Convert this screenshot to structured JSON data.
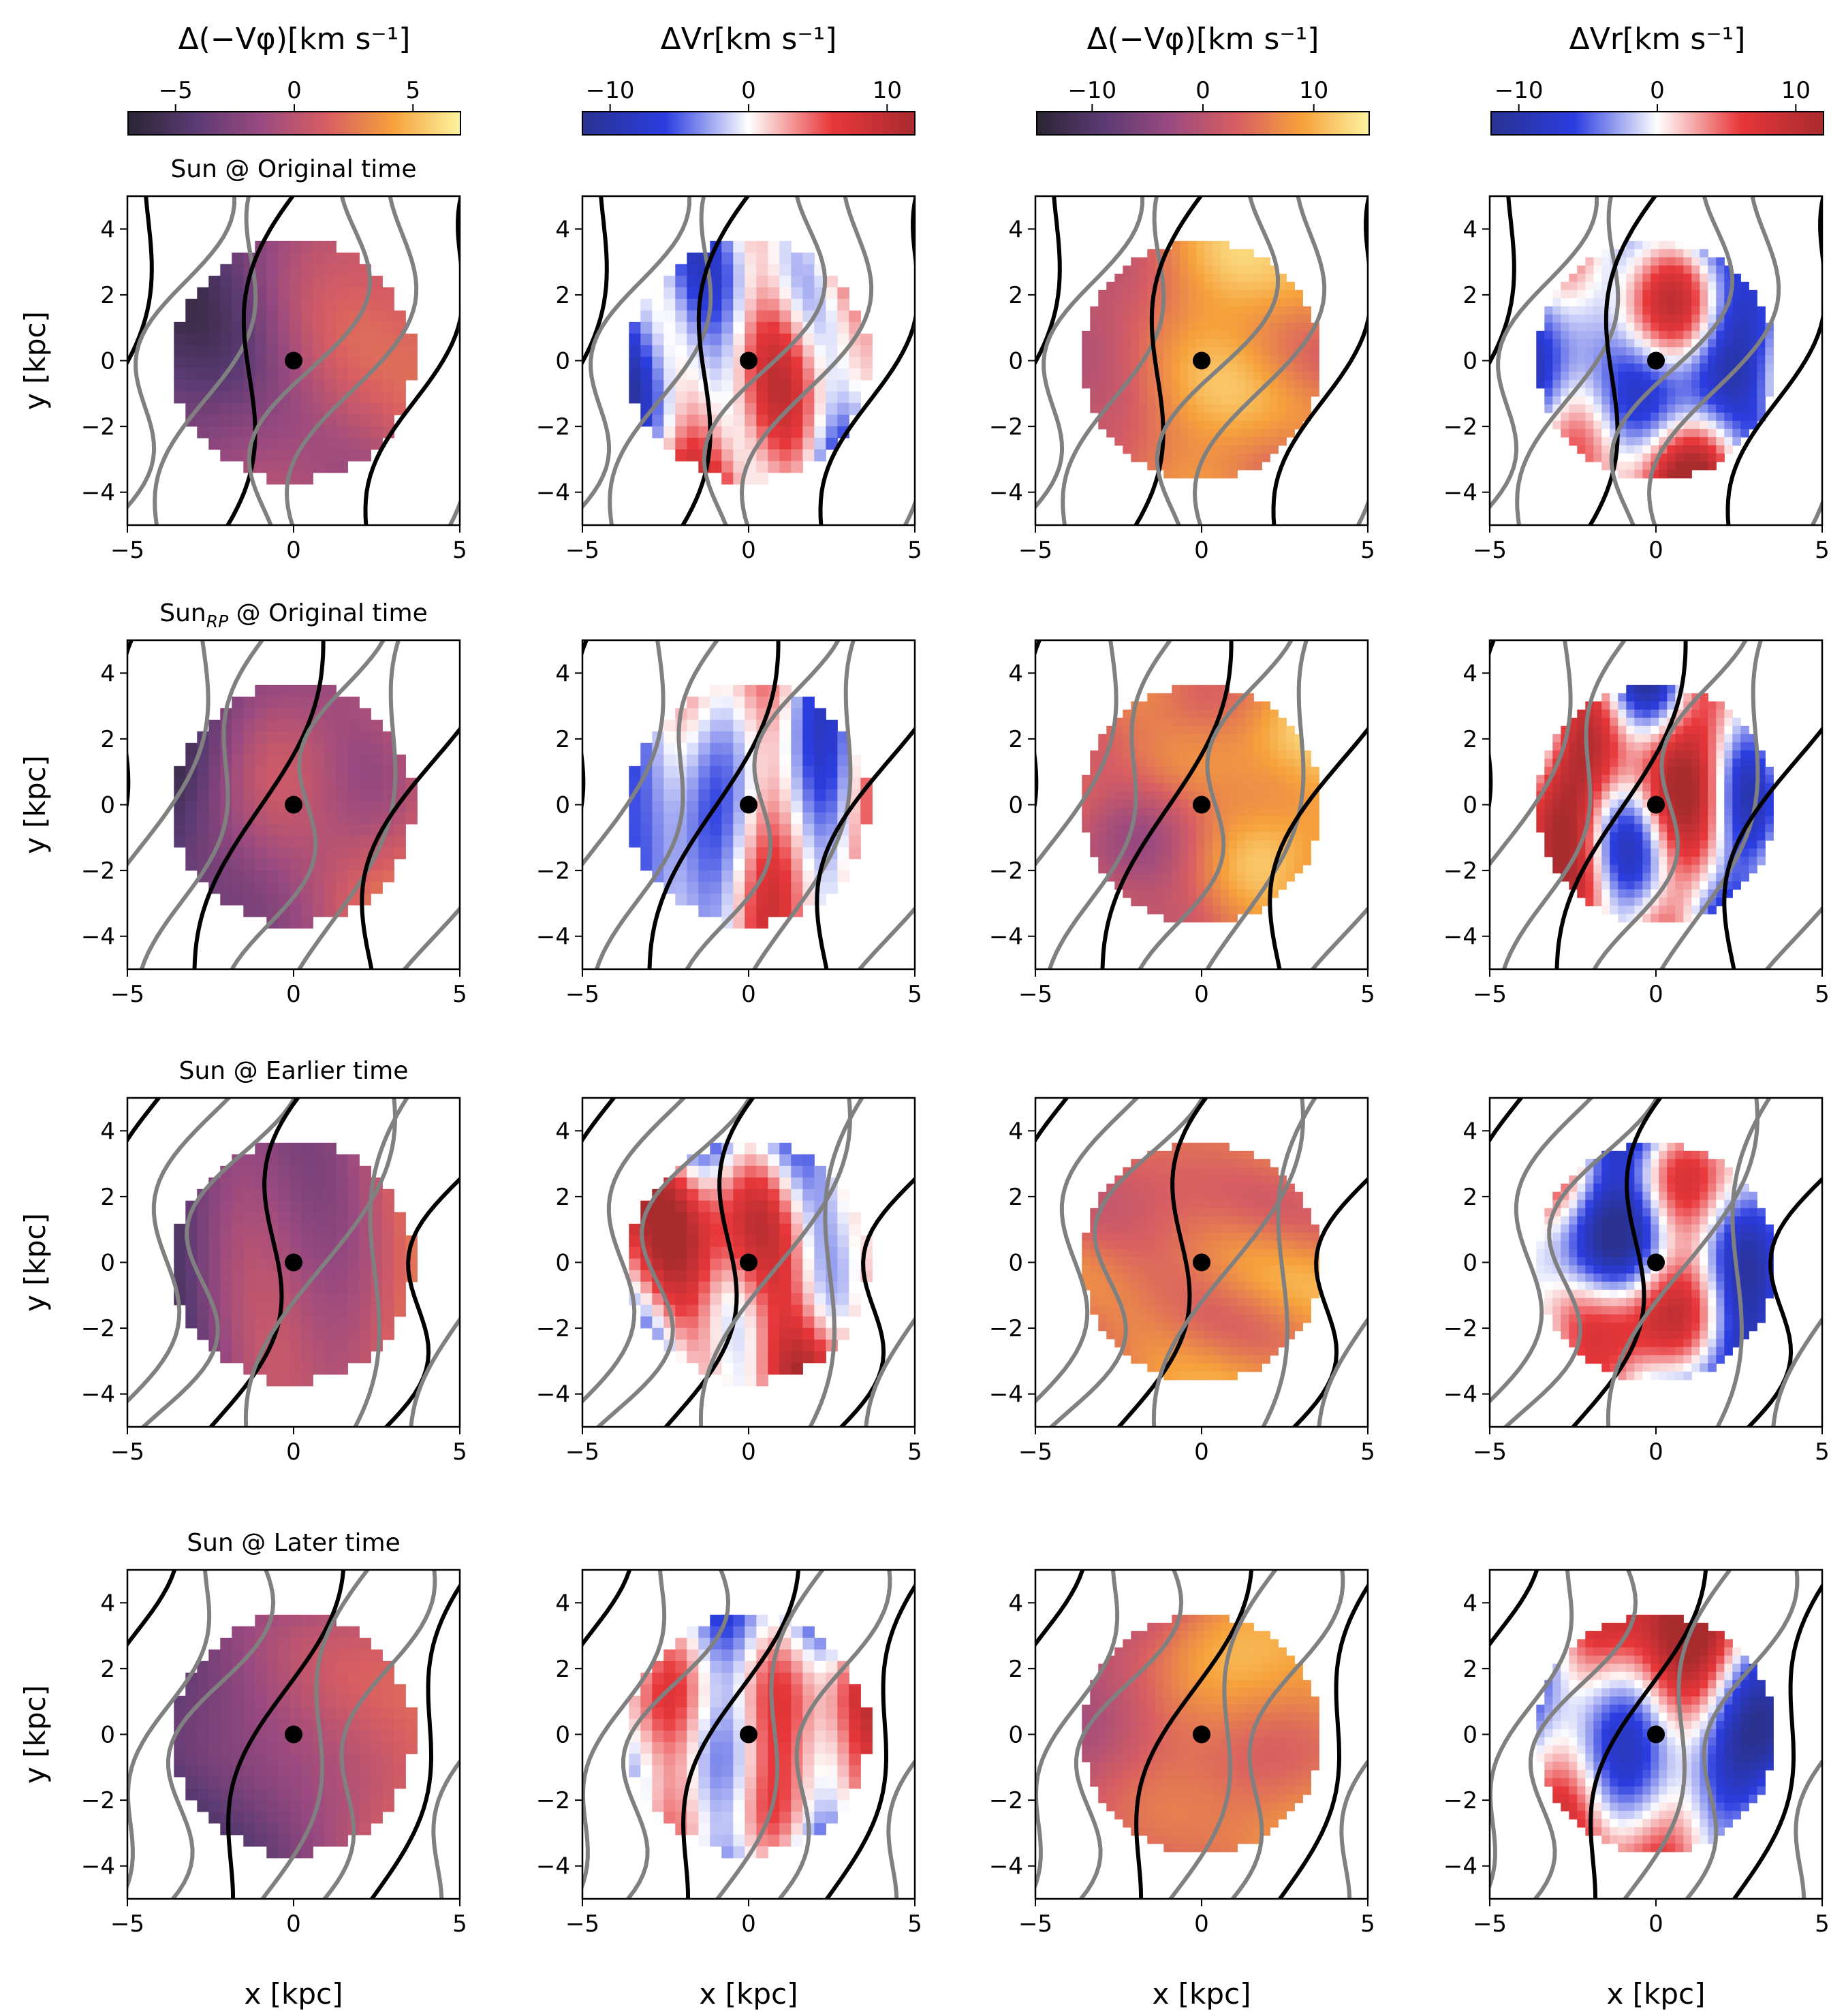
{
  "figure": {
    "xlabel": "x [kpc]",
    "ylabel": "y [kpc]",
    "sun_marker_color": "#000000",
    "arm_colors": [
      "#000000",
      "#808080"
    ]
  },
  "chart_data": {
    "type": "heatmap",
    "colorbars": [
      {
        "label": "Δ(−Vφ)[km s⁻¹]",
        "ticks": [
          -5,
          0,
          5
        ],
        "tick_labels": [
          "−5",
          "0",
          "5"
        ],
        "range": [
          -7,
          7
        ],
        "colormap": "inferno-like",
        "colors": [
          "#2b2535",
          "#5a3a72",
          "#9a4a80",
          "#d85e62",
          "#f6a23c",
          "#fdf4a0"
        ]
      },
      {
        "label": "ΔVr[km s⁻¹]",
        "ticks": [
          -10,
          0,
          10
        ],
        "tick_labels": [
          "−10",
          "0",
          "10"
        ],
        "range": [
          -12,
          12
        ],
        "colormap": "diverging blue-white-red",
        "colors": [
          "#2a3290",
          "#2b3de0",
          "#ffffff",
          "#e8373a",
          "#a82b2e"
        ]
      },
      {
        "label": "Δ(−Vφ)[km s⁻¹]",
        "ticks": [
          -10,
          0,
          10
        ],
        "tick_labels": [
          "−10",
          "0",
          "10"
        ],
        "range": [
          -15,
          15
        ],
        "colormap": "inferno-like",
        "colors": [
          "#2b2535",
          "#5a3a72",
          "#9a4a80",
          "#d85e62",
          "#f6a23c",
          "#fdf4a0"
        ]
      },
      {
        "label": "ΔVr[km s⁻¹]",
        "ticks": [
          -10,
          0,
          10
        ],
        "tick_labels": [
          "−10",
          "0",
          "10"
        ],
        "range": [
          -12,
          12
        ],
        "colormap": "diverging blue-white-red",
        "colors": [
          "#2a3290",
          "#2b3de0",
          "#ffffff",
          "#e8373a",
          "#a82b2e"
        ]
      }
    ],
    "rows": [
      {
        "title": "Sun @ Original time",
        "title_base": "Sun",
        "title_sub": "",
        "title_rest": " @ Original time"
      },
      {
        "title": "Sun_RP @ Original time",
        "title_base": "Sun",
        "title_sub": "RP",
        "title_rest": " @ Original time"
      },
      {
        "title": "Sun @ Earlier time",
        "title_base": "Sun",
        "title_sub": "",
        "title_rest": " @ Earlier time"
      },
      {
        "title": "Sun @ Later time",
        "title_base": "Sun",
        "title_sub": "",
        "title_rest": " @ Later time"
      }
    ],
    "axes": {
      "xlim": [
        -5,
        5
      ],
      "ylim": [
        -5,
        5
      ],
      "xticks": [
        -5,
        0,
        5
      ],
      "xtick_labels": [
        "−5",
        "0",
        "5"
      ],
      "yticks": [
        -4,
        -2,
        0,
        2,
        4
      ],
      "ytick_labels": [
        "−4",
        "−2",
        "0",
        "2",
        "4"
      ]
    },
    "map_radius_kpc": 3.6,
    "sun_position": [
      0,
      0
    ],
    "panel_styles": [
      "coarse-pixel",
      "coarse-pixel",
      "smooth-simulation",
      "smooth-simulation"
    ]
  }
}
